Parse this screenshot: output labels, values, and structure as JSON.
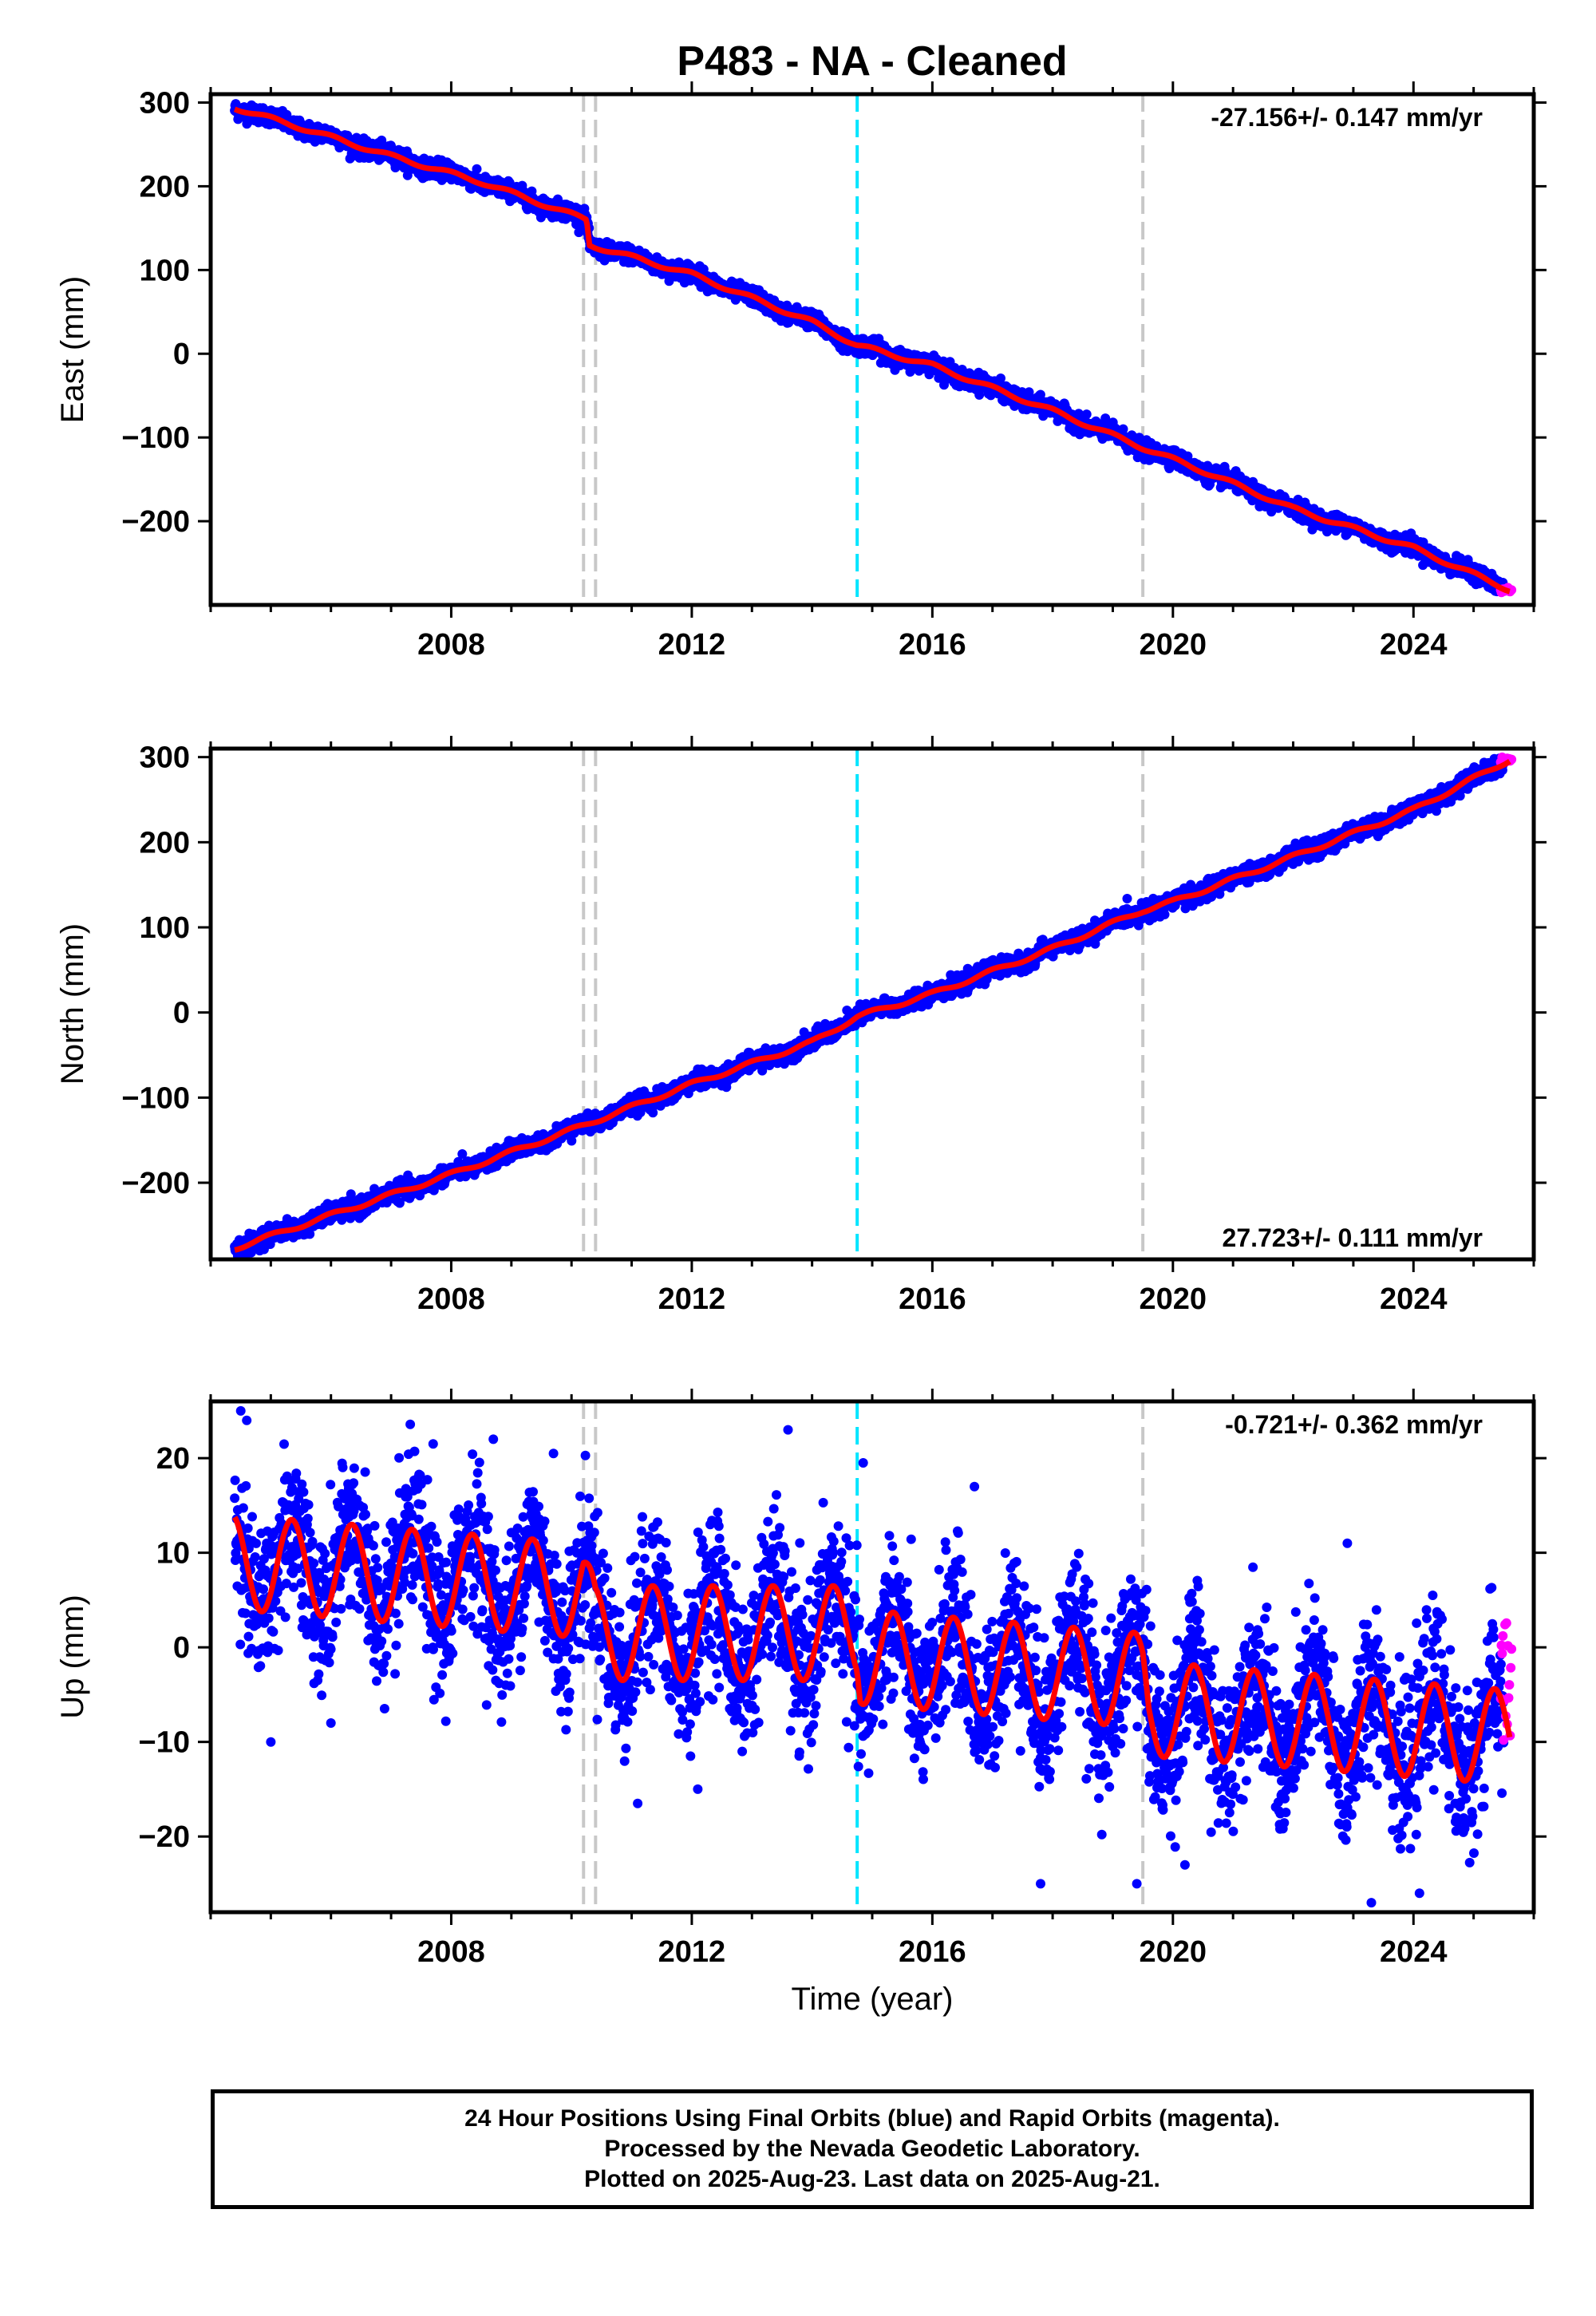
{
  "title": "P483  - NA - Cleaned",
  "colors": {
    "final_orbits": "#0000ff",
    "rapid_orbits": "#ff00ff",
    "model_fit": "#ff0000",
    "equipment_change": "#c8c8c8",
    "earthquake": "#00e5ff"
  },
  "caption": {
    "line1": "24 Hour Positions Using Final Orbits (blue) and Rapid Orbits (magenta).",
    "line2": "Processed by the Nevada Geodetic Laboratory.",
    "line3": "Plotted on 2025-Aug-23. Last data on 2025-Aug-21."
  },
  "chart_data": [
    {
      "type": "scatter",
      "name": "east",
      "ylabel": "East (mm)",
      "xlabel": "",
      "xlim": [
        2004.0,
        2026.0
      ],
      "ylim": [
        -300,
        310
      ],
      "xticks": [
        2008,
        2012,
        2016,
        2020,
        2024
      ],
      "yticks": [
        -200,
        -100,
        0,
        100,
        200,
        300
      ],
      "rate_label": "-27.156+/- 0.147 mm/yr",
      "rate_label_position": "top-right",
      "vertical_lines": {
        "equipment": [
          2010.2,
          2010.4,
          2019.5
        ],
        "earthquake": [
          2014.75
        ]
      },
      "model": {
        "points": [
          [
            2004.4,
            294
          ],
          [
            2005.5,
            270
          ],
          [
            2007.0,
            236
          ],
          [
            2008.5,
            205
          ],
          [
            2010.25,
            160
          ],
          [
            2010.3,
            130
          ],
          [
            2012.0,
            95
          ],
          [
            2014.0,
            38
          ],
          [
            2014.75,
            10
          ],
          [
            2016.0,
            -14
          ],
          [
            2018.0,
            -68
          ],
          [
            2019.5,
            -112
          ],
          [
            2020.5,
            -140
          ],
          [
            2022.0,
            -185
          ],
          [
            2024.0,
            -232
          ],
          [
            2025.6,
            -282
          ]
        ],
        "seasonal_amp": 2.5
      },
      "final_series": {
        "start": 2004.4,
        "end": 2025.5,
        "scatter": 5,
        "seasonal_amp": 2.5
      },
      "rapid_series": {
        "start": 2025.45,
        "end": 2025.63,
        "value": -282,
        "scatter": 2
      }
    },
    {
      "type": "scatter",
      "name": "north",
      "ylabel": "North (mm)",
      "xlabel": "",
      "xlim": [
        2004.0,
        2026.0
      ],
      "ylim": [
        -290,
        310
      ],
      "xticks": [
        2008,
        2012,
        2016,
        2020,
        2024
      ],
      "yticks": [
        -200,
        -100,
        0,
        100,
        200,
        300
      ],
      "rate_label": "27.723+/- 0.111 mm/yr",
      "rate_label_position": "bottom-right",
      "vertical_lines": {
        "equipment": [
          2010.2,
          2010.4,
          2019.5
        ],
        "earthquake": [
          2014.75
        ]
      },
      "model": {
        "points": [
          [
            2004.4,
            -277
          ],
          [
            2006.0,
            -238
          ],
          [
            2008.0,
            -190
          ],
          [
            2010.0,
            -138
          ],
          [
            2012.0,
            -84
          ],
          [
            2014.0,
            -35
          ],
          [
            2014.75,
            -5
          ],
          [
            2016.0,
            22
          ],
          [
            2018.0,
            75
          ],
          [
            2019.5,
            120
          ],
          [
            2020.0,
            130
          ],
          [
            2022.0,
            183
          ],
          [
            2024.0,
            238
          ],
          [
            2025.6,
            297
          ]
        ],
        "seasonal_amp": 2.5
      },
      "final_series": {
        "start": 2004.4,
        "end": 2025.5,
        "scatter": 5,
        "seasonal_amp": 2.5
      },
      "rapid_series": {
        "start": 2025.45,
        "end": 2025.63,
        "value": 296,
        "scatter": 2
      }
    },
    {
      "type": "scatter",
      "name": "up",
      "ylabel": "Up (mm)",
      "xlabel": "Time (year)",
      "xlim": [
        2004.0,
        2026.0
      ],
      "ylim": [
        -28,
        26
      ],
      "xticks": [
        2008,
        2012,
        2016,
        2020,
        2024
      ],
      "yticks": [
        -20,
        -10,
        0,
        10,
        20
      ],
      "rate_label": "-0.721+/- 0.362 mm/yr",
      "rate_label_position": "top-right",
      "vertical_lines": {
        "equipment": [
          2010.2,
          2010.4,
          2019.5
        ],
        "earthquake": [
          2014.75
        ]
      },
      "model": {
        "points": [
          [
            2004.4,
            9
          ],
          [
            2010.2,
            6
          ],
          [
            2010.4,
            1.5
          ],
          [
            2014.75,
            1.5
          ],
          [
            2014.8,
            -1
          ],
          [
            2019.5,
            -3.5
          ],
          [
            2019.6,
            -6.5
          ],
          [
            2025.6,
            -9.5
          ]
        ],
        "seasonal_amp": 5,
        "seasonal_phase": 0.35
      },
      "final_series": {
        "start": 2004.4,
        "end": 2025.5,
        "scatter": 4,
        "seasonal_amp": 5,
        "seasonal_phase": 0.35
      },
      "rapid_series": {
        "start": 2025.45,
        "end": 2025.63,
        "value": -4,
        "scatter": 5
      },
      "outliers": [
        [
          2004.5,
          25
        ],
        [
          2004.6,
          24
        ],
        [
          2005.0,
          -10
        ],
        [
          2006.0,
          -8
        ],
        [
          2007.7,
          21.5
        ],
        [
          2008.7,
          22
        ],
        [
          2009.7,
          20.5
        ],
        [
          2013.6,
          23
        ],
        [
          2014.85,
          19.5
        ],
        [
          2011.1,
          -16.5
        ],
        [
          2012.1,
          -15
        ],
        [
          2016.7,
          17
        ],
        [
          2017.8,
          -25
        ],
        [
          2019.4,
          -25
        ],
        [
          2020.2,
          -23
        ],
        [
          2023.3,
          -27
        ],
        [
          2024.1,
          -26
        ],
        [
          2022.9,
          11
        ]
      ]
    }
  ]
}
